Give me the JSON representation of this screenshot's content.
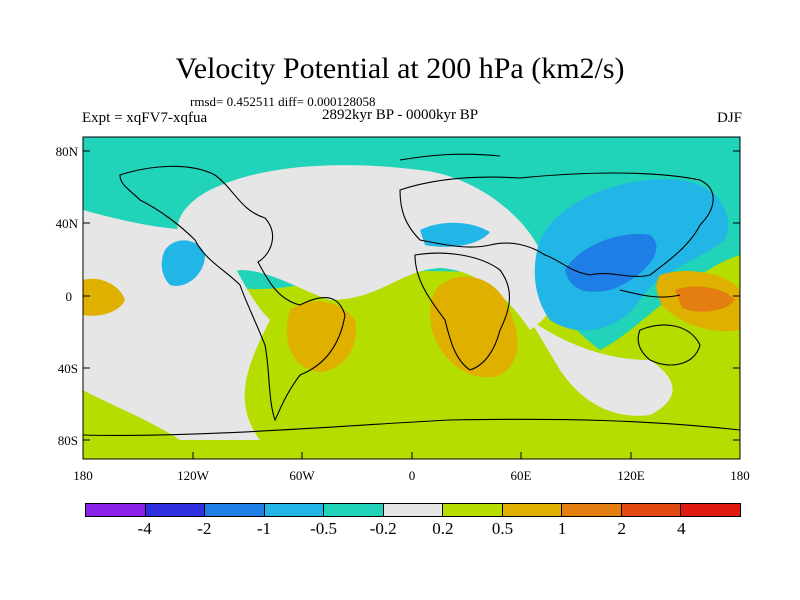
{
  "title": "Velocity Potential at 200 hPa (km2/s)",
  "stats_line": "rmsd= 0.452511 diff= 0.000128058",
  "experiment": "Expt = xqFV7-xqfua",
  "period": "2892kyr BP - 0000kyr BP",
  "season": "DJF",
  "map": {
    "lat_ticks": [
      "80N",
      "40N",
      "0",
      "40S",
      "80S"
    ],
    "lon_ticks": [
      "180",
      "120W",
      "60W",
      "0",
      "60E",
      "120E",
      "180"
    ]
  },
  "colorbar": {
    "colors": [
      "#8a22e8",
      "#2f2fe0",
      "#1e7ee6",
      "#22b6e6",
      "#21d3b8",
      "#e6e6e6",
      "#b6dd00",
      "#e0b000",
      "#e47e10",
      "#e04a10",
      "#e01a10"
    ],
    "labels": [
      "-4",
      "-2",
      "-1",
      "-0.5",
      "-0.2",
      "0.2",
      "0.5",
      "1",
      "2",
      "4"
    ]
  }
}
